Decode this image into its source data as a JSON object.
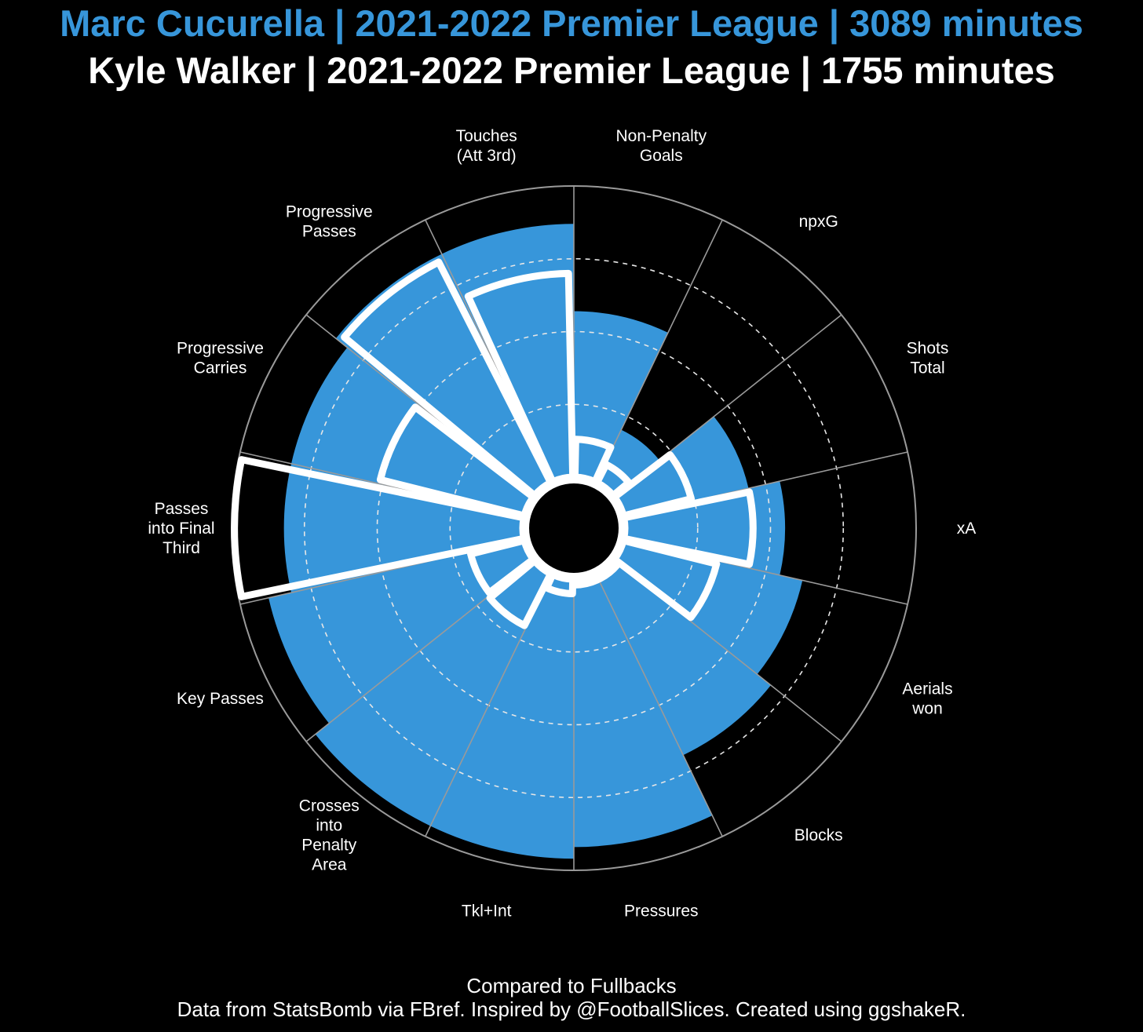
{
  "title_player1": "Marc Cucurella | 2021-2022 Premier League | 3089 minutes",
  "title_player2": "Kyle Walker | 2021-2022 Premier League | 1755 minutes",
  "caption_line1": "Compared to Fullbacks",
  "caption_line2": "Data from StatsBomb via FBref. Inspired by @FootballSlices. Created using ggshakeR.",
  "colors": {
    "player1": "#3796da",
    "player2": "#ffffff",
    "background": "#000000",
    "grid": "#9a9a9a"
  },
  "chart_data": {
    "type": "polar-bar",
    "ylim": [
      0,
      100
    ],
    "grid_rings": [
      25,
      50,
      75
    ],
    "categories": [
      "Non-Penalty Goals",
      "npxG",
      "Shots Total",
      "xA",
      "Aerials won",
      "Blocks",
      "Pressures",
      "Tkl+Int",
      "Crosses into Penalty Area",
      "Key Passes",
      "Passes into Final Third",
      "Progressive Carries",
      "Progressive Passes",
      "Touches (Att 3rd)"
    ],
    "category_labels": [
      [
        "Non-Penalty",
        "Goals"
      ],
      [
        "npxG"
      ],
      [
        "Shots",
        "Total"
      ],
      [
        "xA"
      ],
      [
        "Aerials",
        "won"
      ],
      [
        "Blocks"
      ],
      [
        "Pressures"
      ],
      [
        "Tkl+Int"
      ],
      [
        "Crosses",
        "into",
        "Penalty",
        "Area"
      ],
      [
        "Key Passes"
      ],
      [
        "Passes",
        "into Final",
        "Third"
      ],
      [
        "Progressive",
        "Carries"
      ],
      [
        "Progressive",
        "Passes"
      ],
      [
        "Touches",
        "(Att 3rd)"
      ]
    ],
    "series": [
      {
        "name": "Marc Cucurella",
        "values": [
          57,
          20,
          44,
          55,
          63,
          69,
          92,
          96,
          96,
          90,
          82,
          82,
          87,
          87
        ]
      },
      {
        "name": "Kyle Walker",
        "values": [
          13,
          7,
          24,
          44,
          33,
          2,
          2,
          5,
          20,
          19,
          99,
          51,
          85,
          70
        ]
      }
    ]
  }
}
